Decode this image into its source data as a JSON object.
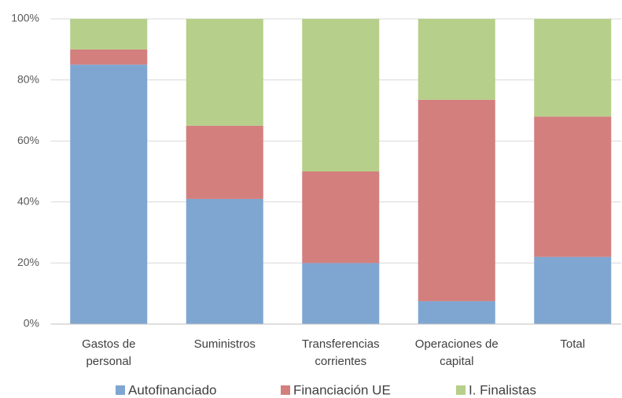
{
  "chart_data": {
    "type": "stacked-bar-percent",
    "categories": [
      "Gastos de personal",
      "Suministros",
      "Transferencias corrientes",
      "Operaciones de capital",
      "Total"
    ],
    "series": [
      {
        "name": "Autofinanciado",
        "color": "#7fa6d1",
        "values": [
          85,
          41,
          20,
          7.5,
          22
        ]
      },
      {
        "name": "Financiación UE",
        "color": "#d27f7e",
        "values": [
          5,
          24,
          30,
          66,
          46
        ]
      },
      {
        "name": "I. Finalistas",
        "color": "#b6cf8a",
        "values": [
          10,
          35,
          50,
          26.5,
          32
        ]
      }
    ],
    "ylim": [
      0,
      100
    ],
    "yticks": [
      {
        "value": 0,
        "label": "0%"
      },
      {
        "value": 20,
        "label": "20%"
      },
      {
        "value": 40,
        "label": "40%"
      },
      {
        "value": 60,
        "label": "60%"
      },
      {
        "value": 80,
        "label": "80%"
      },
      {
        "value": 100,
        "label": "100%"
      }
    ],
    "grid": true,
    "legend": "bottom"
  }
}
